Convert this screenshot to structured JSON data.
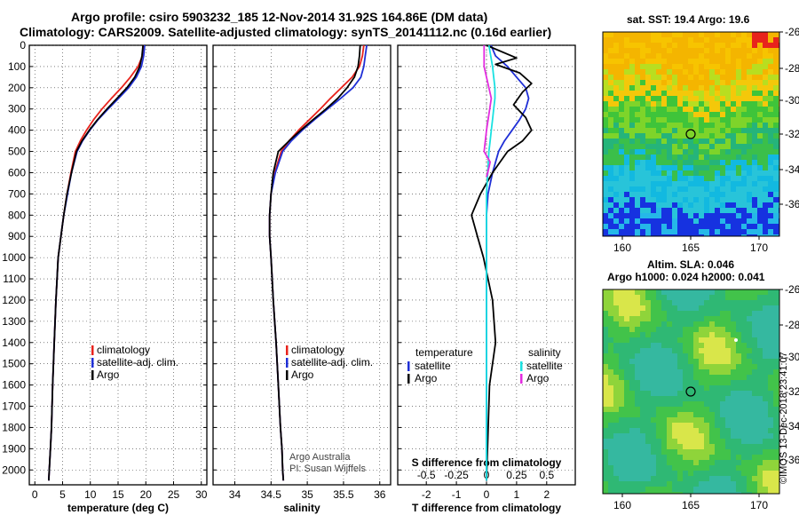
{
  "title_line1": "Argo profile: csiro 5903232_185 12-Nov-2014 31.92S 164.86E (DM data)",
  "title_line2": "Climatology: CARS2009. Satellite-adjusted climatology: synTS_20141112.nc (0.16d earlier)",
  "stamp": "©IMOS 13-Dec-2018 23:41:07",
  "credit_line1": "Argo Australia",
  "credit_line2": "PI: Susan Wijffels",
  "colors": {
    "red": "#e8231c",
    "blue": "#1f2fd6",
    "black": "#000000",
    "cyan": "#19e1e1",
    "magenta": "#e32be0"
  },
  "map_sst": {
    "title": "sat. SST: 19.4 Argo: 19.6"
  },
  "map_sla": {
    "title_line1": "Altim. SLA: 0.046",
    "title_line2": "Argo h1000: 0.024 h2000: 0.041"
  },
  "chart_data": [
    {
      "type": "line",
      "xlabel": "temperature (deg C)",
      "ylabel": "",
      "xlim": [
        -1,
        31
      ],
      "ylim": [
        2070,
        0
      ],
      "xticks": [
        0,
        5,
        10,
        15,
        20,
        25,
        30
      ],
      "yticks": [
        0,
        100,
        200,
        300,
        400,
        500,
        600,
        700,
        800,
        900,
        1000,
        1100,
        1200,
        1300,
        1400,
        1500,
        1600,
        1700,
        1800,
        1900,
        2000
      ],
      "ytick_labels": [
        "0",
        "100",
        "200",
        "300",
        "400",
        "500",
        "600",
        "700",
        "800",
        "900",
        "1000",
        "1100",
        "1200",
        "1300",
        "1400",
        "1500",
        "1600",
        "1700",
        "1800",
        "1900",
        "2000"
      ],
      "legend": [
        "climatology",
        "satellite-adj. clim.",
        "Argo"
      ],
      "legend_placement": "lower-right",
      "grid": true,
      "series": [
        {
          "name": "climatology",
          "color": "red",
          "x": [
            19.6,
            19.4,
            18.6,
            17.2,
            15.6,
            13.8,
            12.1,
            10.6,
            9.3,
            8.2,
            7.3,
            6.5,
            5.8,
            5.2,
            4.7,
            4.2,
            3.8,
            3.5,
            3.2,
            3.0,
            2.8,
            2.6,
            2.5
          ],
          "y": [
            0,
            50,
            100,
            150,
            200,
            250,
            300,
            350,
            400,
            450,
            500,
            600,
            700,
            800,
            900,
            1000,
            1200,
            1400,
            1600,
            1800,
            1900,
            2000,
            2050
          ]
        },
        {
          "name": "satellite-adj. clim.",
          "color": "blue",
          "x": [
            19.8,
            19.6,
            19.2,
            18.3,
            16.9,
            15.1,
            13.2,
            11.4,
            9.9,
            8.6,
            7.6,
            6.6,
            5.9,
            5.2,
            4.7,
            4.2,
            3.8,
            3.5,
            3.2,
            3.0,
            2.8,
            2.6,
            2.5
          ],
          "y": [
            0,
            50,
            100,
            150,
            200,
            250,
            300,
            350,
            400,
            450,
            500,
            600,
            700,
            800,
            900,
            1000,
            1200,
            1400,
            1600,
            1800,
            1900,
            2000,
            2050
          ]
        },
        {
          "name": "Argo",
          "color": "black",
          "x": [
            19.5,
            19.3,
            18.9,
            18.0,
            16.6,
            14.8,
            13.0,
            11.3,
            9.8,
            8.5,
            7.5,
            6.6,
            5.8,
            5.2,
            4.7,
            4.2,
            3.8,
            3.5,
            3.2,
            3.0,
            2.8,
            2.6,
            2.5
          ],
          "y": [
            0,
            50,
            100,
            150,
            200,
            250,
            300,
            350,
            400,
            450,
            500,
            600,
            700,
            800,
            900,
            1000,
            1200,
            1400,
            1600,
            1800,
            1900,
            2000,
            2050
          ]
        }
      ]
    },
    {
      "type": "line",
      "xlabel": "salinity",
      "xlim": [
        33.7,
        36.15
      ],
      "ylim": [
        2070,
        0
      ],
      "xticks": [
        34,
        34.5,
        35,
        35.5,
        36
      ],
      "xtick_labels": [
        "34",
        "34.5",
        "35",
        "35.5",
        "36"
      ],
      "legend": [
        "climatology",
        "satellite-adj. clim.",
        "Argo"
      ],
      "legend_placement": "lower-right",
      "grid": true,
      "series": [
        {
          "name": "climatology",
          "color": "red",
          "x": [
            35.78,
            35.76,
            35.72,
            35.62,
            35.47,
            35.32,
            35.18,
            35.03,
            34.88,
            34.75,
            34.64,
            34.55,
            34.5,
            34.48,
            34.48,
            34.5,
            34.53,
            34.57,
            34.6,
            34.63,
            34.65,
            34.66,
            34.67
          ],
          "y": [
            0,
            50,
            100,
            150,
            200,
            250,
            300,
            350,
            400,
            450,
            500,
            600,
            700,
            800,
            900,
            1000,
            1200,
            1400,
            1600,
            1800,
            1900,
            2000,
            2050
          ]
        },
        {
          "name": "satellite-adj. clim.",
          "color": "blue",
          "x": [
            35.82,
            35.8,
            35.78,
            35.74,
            35.63,
            35.46,
            35.28,
            35.1,
            34.93,
            34.78,
            34.66,
            34.56,
            34.5,
            34.48,
            34.48,
            34.5,
            34.53,
            34.57,
            34.6,
            34.63,
            34.65,
            34.66,
            34.67
          ],
          "y": [
            0,
            50,
            100,
            150,
            200,
            250,
            300,
            350,
            400,
            450,
            500,
            600,
            700,
            800,
            900,
            1000,
            1200,
            1400,
            1600,
            1800,
            1900,
            2000,
            2050
          ]
        },
        {
          "name": "Argo",
          "color": "black",
          "x": [
            35.73,
            35.72,
            35.7,
            35.65,
            35.55,
            35.42,
            35.26,
            35.08,
            34.91,
            34.75,
            34.6,
            34.53,
            34.5,
            34.48,
            34.48,
            34.5,
            34.53,
            34.57,
            34.6,
            34.63,
            34.65,
            34.66,
            34.67
          ],
          "y": [
            0,
            50,
            100,
            150,
            200,
            250,
            300,
            350,
            400,
            450,
            500,
            600,
            700,
            800,
            900,
            1000,
            1200,
            1400,
            1600,
            1800,
            1900,
            2000,
            2050
          ]
        }
      ]
    },
    {
      "type": "line",
      "xlabel": "T difference from climatology",
      "s_axis_label": "S difference from climatology",
      "xlim": [
        -2.95,
        2.95
      ],
      "s_xlim": [
        -0.737,
        0.737
      ],
      "ylim": [
        2070,
        0
      ],
      "xticks": [
        -2,
        -1,
        0,
        1,
        2
      ],
      "xtick_labels": [
        "-2",
        "-1",
        "0",
        "1",
        "2"
      ],
      "s_xticks": [
        -0.5,
        -0.25,
        0,
        0.25,
        0.5
      ],
      "s_xtick_labels": [
        "-0.5",
        "-0.25",
        "0",
        "0.25",
        "0.5"
      ],
      "legend_left_title": "temperature",
      "legend_right_title": "salinity",
      "legend_left": [
        "satellite",
        "Argo"
      ],
      "legend_right": [
        "satellite",
        "Argo"
      ],
      "legend_placement": "lower-center",
      "grid": true,
      "series": [
        {
          "name": "satellite",
          "quantity": "temperature",
          "color": "blue",
          "x": [
            0.15,
            0.3,
            0.7,
            1.0,
            1.3,
            1.4,
            1.3,
            1.1,
            0.85,
            0.6,
            0.4,
            0.2,
            0.05,
            0.0,
            0.0,
            0.0,
            0.0,
            0.0,
            0.0,
            0.0
          ],
          "y": [
            0,
            50,
            100,
            150,
            200,
            250,
            300,
            350,
            400,
            450,
            500,
            600,
            700,
            800,
            900,
            1000,
            1200,
            1400,
            1600,
            2050
          ]
        },
        {
          "name": "Argo",
          "quantity": "temperature",
          "color": "black",
          "x": [
            0.0,
            1.0,
            0.3,
            1.1,
            1.5,
            1.2,
            0.9,
            1.3,
            1.5,
            1.2,
            0.7,
            0.2,
            -0.2,
            -0.5,
            -0.3,
            -0.1,
            0.2,
            0.3,
            0.1,
            0.0
          ],
          "y": [
            0,
            60,
            90,
            130,
            180,
            220,
            280,
            340,
            400,
            450,
            500,
            600,
            700,
            800,
            900,
            1000,
            1200,
            1400,
            1600,
            2050
          ]
        },
        {
          "name": "satellite",
          "quantity": "salinity",
          "color": "cyan",
          "x": [
            0.02,
            0.05,
            0.06,
            0.07,
            0.07,
            0.06,
            0.05,
            0.04,
            0.03,
            0.02,
            0.01,
            0.0,
            0.0,
            0.0,
            0.0,
            0.0
          ],
          "y": [
            0,
            100,
            150,
            200,
            250,
            300,
            350,
            400,
            450,
            500,
            600,
            700,
            800,
            1000,
            1500,
            2050
          ]
        },
        {
          "name": "Argo",
          "quantity": "salinity",
          "color": "magenta",
          "x": [
            -0.02,
            -0.02,
            0.0,
            0.02,
            0.04,
            0.0,
            -0.02,
            0.03,
            0.01,
            0.0
          ],
          "y": [
            0,
            100,
            150,
            200,
            250,
            400,
            500,
            550,
            600,
            620
          ]
        }
      ]
    }
  ]
}
